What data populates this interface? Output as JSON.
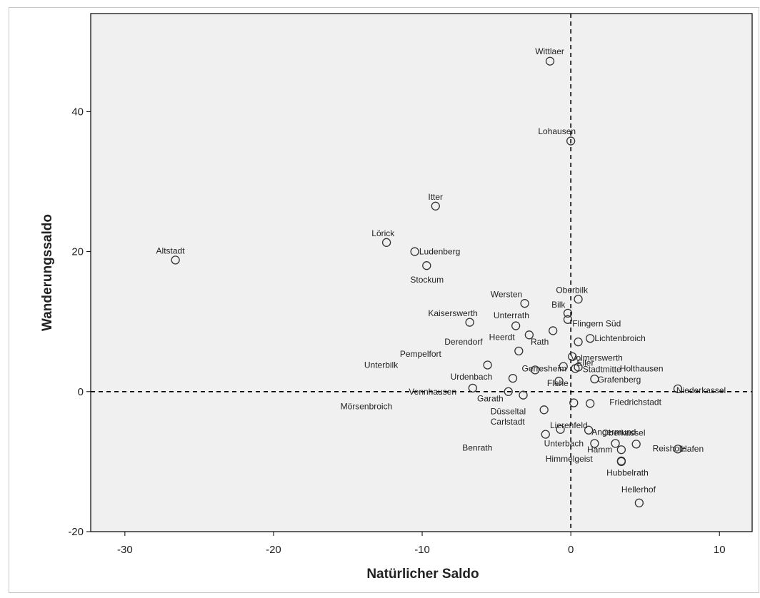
{
  "colors": {
    "plot_background": "#f0f0f0",
    "marker_stroke": "#333333",
    "axis": "#000000",
    "label_text": "#222222"
  },
  "chart_data": {
    "type": "scatter",
    "xlabel": "Natürlicher Saldo",
    "ylabel": "Wanderungssaldo",
    "xlim": [
      -32.3,
      12.2
    ],
    "ylim": [
      -20,
      54
    ],
    "xticks": [
      -30,
      -20,
      -10,
      0,
      10
    ],
    "yticks": [
      -20,
      0,
      20,
      40
    ],
    "reference_lines": {
      "x": 0,
      "y": 0,
      "style": "dashed"
    },
    "grid": false,
    "points": [
      {
        "label": "Wittlaer",
        "x": -1.4,
        "y": 47.2
      },
      {
        "label": "Lohausen",
        "x": 0.0,
        "y": 35.8
      },
      {
        "label": "Itter",
        "x": -9.1,
        "y": 26.5
      },
      {
        "label": "Lörick",
        "x": -12.4,
        "y": 21.3
      },
      {
        "label": "Ludenberg",
        "x": -10.5,
        "y": 20.0
      },
      {
        "label": "Altstadt",
        "x": -26.6,
        "y": 18.8
      },
      {
        "label": "Stockum",
        "x": -9.7,
        "y": 18.0
      },
      {
        "label": "Oberbilk",
        "x": 0.5,
        "y": 13.2
      },
      {
        "label": "Wersten",
        "x": -3.1,
        "y": 12.6
      },
      {
        "label": "Bilk",
        "x": -0.2,
        "y": 11.2
      },
      {
        "label": "Kaiserswerth",
        "x": -6.8,
        "y": 9.9
      },
      {
        "label": "Unterrath",
        "x": -3.7,
        "y": 9.4
      },
      {
        "label": "Flingern Süd",
        "x": -0.2,
        "y": 10.3
      },
      {
        "label": "Heerdt",
        "x": -2.8,
        "y": 8.1
      },
      {
        "label": "Rath",
        "x": -1.2,
        "y": 8.7
      },
      {
        "label": "Lichtenbroich",
        "x": 1.3,
        "y": 7.6
      },
      {
        "label": "Derendorf",
        "x": 0.5,
        "y": 7.1
      },
      {
        "label": "Pempelfort",
        "x": -3.5,
        "y": 5.8
      },
      {
        "label": "Volmerswerth",
        "x": 0.1,
        "y": 5.0
      },
      {
        "label": "Gerresheim",
        "x": -0.5,
        "y": 3.6
      },
      {
        "label": "Unterbilk",
        "x": -5.6,
        "y": 3.8
      },
      {
        "label": "Stadtmitte",
        "x": 0.3,
        "y": 3.3
      },
      {
        "label": "Holthausen",
        "x": 0.5,
        "y": 3.5
      },
      {
        "label": "Urdenbach",
        "x": -3.9,
        "y": 1.9
      },
      {
        "label": "Eller",
        "x": -2.4,
        "y": 3.1
      },
      {
        "label": "Grafenberg",
        "x": 1.6,
        "y": 1.8
      },
      {
        "label": "Flehe",
        "x": -0.8,
        "y": 1.5
      },
      {
        "label": "Niederkassel",
        "x": 7.2,
        "y": 0.4
      },
      {
        "label": "Vennhausen",
        "x": -6.6,
        "y": 0.5
      },
      {
        "label": "Garath",
        "x": -4.2,
        "y": 0.0
      },
      {
        "label": "Mörsenbroich",
        "x": -3.2,
        "y": -0.5
      },
      {
        "label": "Friedrichstadt",
        "x": 1.3,
        "y": -1.7
      },
      {
        "label": "Düsseltal",
        "x": -1.8,
        "y": -2.6
      },
      {
        "label": "Lierenfeld",
        "x": 0.2,
        "y": -1.6
      },
      {
        "label": "Oberkassel",
        "x": 1.2,
        "y": -5.5
      },
      {
        "label": "Carlstadt",
        "x": -0.7,
        "y": -5.4
      },
      {
        "label": "Angermund",
        "x": 3.0,
        "y": -7.4
      },
      {
        "label": "Reisholz",
        "x": 4.4,
        "y": -7.5
      },
      {
        "label": "Benrath",
        "x": -1.7,
        "y": -6.1
      },
      {
        "label": "Unterbach",
        "x": 1.6,
        "y": -7.4
      },
      {
        "label": "Hamm",
        "x": 3.4,
        "y": -8.3
      },
      {
        "label": "Hafen",
        "x": 7.2,
        "y": -8.2
      },
      {
        "label": "Himmelgeist",
        "x": 3.4,
        "y": -9.9
      },
      {
        "label": "Hubbelrath",
        "x": 3.4,
        "y": -10.0
      },
      {
        "label": "Hellerhof",
        "x": 4.6,
        "y": -15.9
      }
    ],
    "label_offsets": {
      "Wittlaer": [
        -1.0,
        1.4
      ],
      "Lohausen": [
        -2.2,
        1.4
      ],
      "Itter": [
        -0.5,
        1.3
      ],
      "Lörick": [
        -1.0,
        1.3
      ],
      "Ludenberg": [
        0.3,
        0.0
      ],
      "Altstadt": [
        -1.3,
        1.3
      ],
      "Stockum": [
        -1.1,
        -2.0
      ],
      "Oberbilk": [
        -1.5,
        1.3
      ],
      "Wersten": [
        -2.3,
        1.3
      ],
      "Bilk": [
        -1.1,
        1.2
      ],
      "Kaiserswerth": [
        -2.8,
        1.3
      ],
      "Unterrath": [
        -1.5,
        1.5
      ],
      "Flingern Süd": [
        0.3,
        -0.6
      ],
      "Heerdt": [
        -2.7,
        -0.3
      ],
      "Rath": [
        -1.5,
        -1.6
      ],
      "Lichtenbroich": [
        0.3,
        0.0
      ],
      "Derendorf": [
        -9.0,
        0.0
      ],
      "Pempelfort": [
        -8.0,
        -0.4
      ],
      "Volmerswerth": [
        -0.1,
        -0.2
      ],
      "Gerresheim": [
        -2.8,
        -0.3
      ],
      "Unterbilk": [
        -8.3,
        0.0
      ],
      "Stadtmitte": [
        0.5,
        -0.1
      ],
      "Holthausen": [
        2.8,
        -0.2
      ],
      "Urdenbach": [
        -4.2,
        0.2
      ],
      "Eller": [
        2.8,
        1.0
      ],
      "Grafenberg": [
        0.2,
        -0.1
      ],
      "Flehe": [
        -0.8,
        -0.3
      ],
      "Niederkassel": [
        -0.1,
        -0.2
      ],
      "Vennhausen": [
        -4.3,
        -0.5
      ],
      "Garath": [
        -2.1,
        -1.0
      ],
      "Mörsenbroich": [
        -12.3,
        -1.6
      ],
      "Friedrichstadt": [
        1.3,
        0.2
      ],
      "Düsseltal": [
        -3.6,
        -0.2
      ],
      "Lierenfeld": [
        -1.6,
        -3.2
      ],
      "Oberkassel": [
        0.9,
        -0.4
      ],
      "Carlstadt": [
        -4.7,
        1.1
      ],
      "Angermund": [
        -1.6,
        1.6
      ],
      "Reisholz": [
        1.1,
        -0.6
      ],
      "Benrath": [
        -5.6,
        -1.9
      ],
      "Unterbach": [
        -3.4,
        0.0
      ],
      "Hamm": [
        -2.3,
        0.0
      ],
      "Hafen": [
        0.2,
        0.0
      ],
      "Himmelgeist": [
        -5.1,
        0.3
      ],
      "Hubbelrath": [
        -1.0,
        -1.6
      ],
      "Hellerhof": [
        -1.2,
        1.9
      ]
    }
  }
}
